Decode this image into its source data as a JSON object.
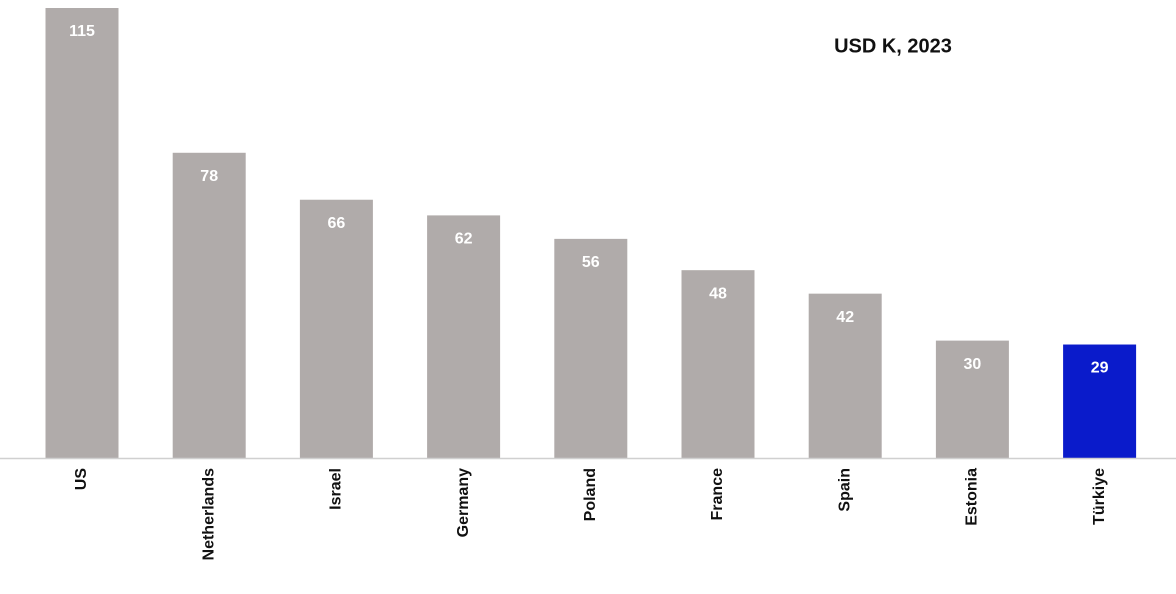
{
  "chart_data": {
    "type": "bar",
    "title": "USD K, 2023",
    "categories": [
      "US",
      "Netherlands",
      "Israel",
      "Germany",
      "Poland",
      "France",
      "Spain",
      "Estonia",
      "Türkiye"
    ],
    "values": [
      115,
      78,
      66,
      62,
      56,
      48,
      42,
      30,
      29
    ],
    "colors": [
      "#b0abaa",
      "#b0abaa",
      "#b0abaa",
      "#b0abaa",
      "#b0abaa",
      "#b0abaa",
      "#b0abaa",
      "#b0abaa",
      "#0a1bcb"
    ]
  }
}
